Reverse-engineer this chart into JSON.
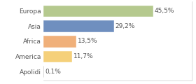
{
  "categories": [
    "Europa",
    "Asia",
    "Africa",
    "America",
    "Apolidi"
  ],
  "values": [
    45.5,
    29.2,
    13.5,
    11.7,
    0.1
  ],
  "labels": [
    "45,5%",
    "29,2%",
    "13,5%",
    "11,7%",
    "0,1%"
  ],
  "bar_colors": [
    "#b5c98e",
    "#6f8fbf",
    "#f0b07a",
    "#f5d07a",
    "#ffffff"
  ],
  "bar_edge_colors": [
    "#b5c98e",
    "#6f8fbf",
    "#f0b07a",
    "#f5d07a",
    "#bbbbbb"
  ],
  "background_color": "#ffffff",
  "text_color": "#555555",
  "label_fontsize": 6.5,
  "category_fontsize": 6.5,
  "figsize": [
    2.8,
    1.2
  ],
  "dpi": 100,
  "xlim": [
    0,
    62
  ],
  "bar_height": 0.72
}
